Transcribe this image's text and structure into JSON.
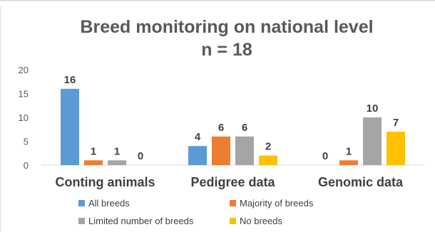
{
  "chart_data": {
    "type": "bar",
    "title": "Breed monitoring on national level",
    "subtitle": "n = 18",
    "xlabel": "",
    "ylabel": "",
    "categories": [
      "Conting animals",
      "Pedigree data",
      "Genomic data"
    ],
    "series": [
      {
        "name": "All breeds",
        "values": [
          16,
          4,
          0
        ],
        "color": "#5b9bd5"
      },
      {
        "name": "Majority of breeds",
        "values": [
          1,
          6,
          1
        ],
        "color": "#ed7d31"
      },
      {
        "name": "Limited number of breeds",
        "values": [
          1,
          6,
          10
        ],
        "color": "#a5a5a5"
      },
      {
        "name": "No breeds",
        "values": [
          0,
          2,
          7
        ],
        "color": "#ffc000"
      }
    ],
    "ylim": [
      0,
      20
    ],
    "yticks": [
      0,
      5,
      10,
      15,
      20
    ],
    "grid": false,
    "legend_position": "bottom",
    "data_labels": true
  }
}
